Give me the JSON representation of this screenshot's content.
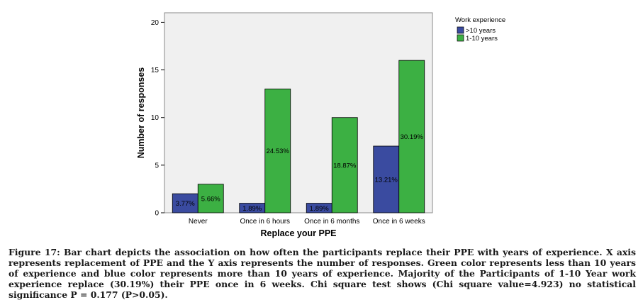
{
  "chart_data": {
    "type": "bar",
    "title": "",
    "xlabel": "Replace your PPE",
    "ylabel": "Number of responses",
    "categories": [
      "Never",
      "Once in 6 hours",
      "Once in 6 months",
      "Once in 6 weeks"
    ],
    "series": [
      {
        "name": ">10 years",
        "color": "#3a4ba0",
        "values": [
          2,
          1,
          1,
          7
        ],
        "labels": [
          "3.77%",
          "1.89%",
          "1.89%",
          "13.21%"
        ]
      },
      {
        "name": "1-10 years",
        "color": "#3cb043",
        "values": [
          3,
          13,
          10,
          16
        ],
        "labels": [
          "5.66%",
          "24.53%",
          "18.87%",
          "30.19%"
        ]
      }
    ],
    "ylim": [
      0,
      21
    ],
    "yticks": [
      0,
      5,
      10,
      15,
      20
    ],
    "grid": false,
    "legend_title": "Work experience",
    "legend_position": "top-right",
    "plot_background": "#f0f0f0"
  },
  "caption": "Figure 17: Bar chart depicts the association on how often the participants replace their PPE with years of experience. X axis represents replacement of PPE and the Y axis represents the number of responses. Green color represents less than 10 years of experience and blue color represents more than 10 years of experience. Majority of the Participants of 1-10 Year work experience replace (30.19%) their PPE once in 6 weeks. Chi square test shows (Chi square value=4.923) no statistical significance P = 0.177 (P>0.05)."
}
